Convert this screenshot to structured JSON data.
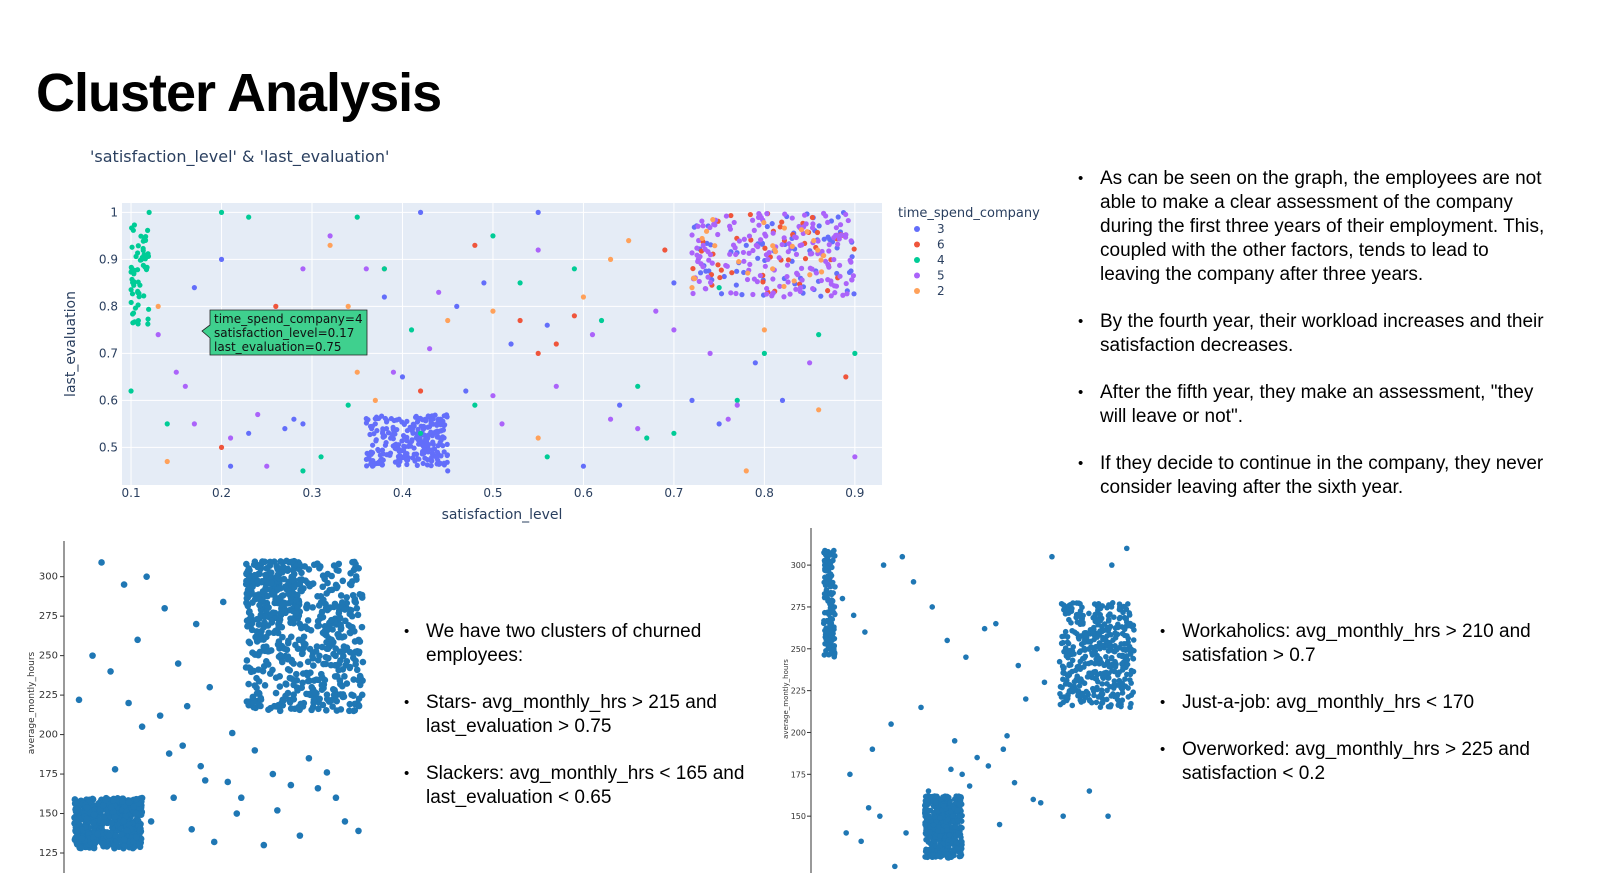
{
  "slide": {
    "title": "Cluster Analysis",
    "bullets_right": [
      "As can be seen on the graph, the employees are not able to make a clear assessment of the company during the first three years of their employment. This, coupled with the other factors, tends to lead to leaving the company after three years.",
      "By the fourth year, their workload increases and their satisfaction decreases.",
      "After the fifth year, they make an assessment, \"they will leave or not\".",
      "If they decide to continue in the company, they never consider leaving after the sixth year."
    ],
    "bullets_middle": [
      "We have two clusters of churned employees:",
      "Stars- avg_monthly_hrs > 215 and last_evaluation > 0.75",
      " Slackers: avg_monthly_hrs < 165 and last_evaluation < 0.65"
    ],
    "bullets_far_right": [
      "Workaholics: avg_monthly_hrs > 210 and satisfation > 0.7",
      "Just-a-job: avg_monthly_hrs < 170",
      " Overworked: avg_monthly_hrs > 225 and satisfaction < 0.2"
    ]
  },
  "colors": {
    "plot_bg": "#e5ecf6",
    "scatter_blue": "#1f77b4",
    "tooltip_bg": "#3fd08e"
  },
  "chart_data": [
    {
      "type": "scatter",
      "title": "'satisfaction_level' & 'last_evaluation'",
      "xlabel": "satisfaction_level",
      "ylabel": "last_evaluation",
      "xlim": [
        0.09,
        0.93
      ],
      "ylim": [
        0.42,
        1.02
      ],
      "x_ticks": [
        0.1,
        0.2,
        0.3,
        0.4,
        0.5,
        0.6,
        0.7,
        0.8,
        0.9
      ],
      "y_ticks": [
        0.5,
        0.6,
        0.7,
        0.8,
        0.9,
        1
      ],
      "grid": true,
      "legend_title": "time_spend_company",
      "legend_position": "right",
      "series": [
        {
          "name": "3",
          "color": "#636efa",
          "clusters": [
            {
              "x": [
                0.36,
                0.45
              ],
              "y": [
                0.46,
                0.57
              ],
              "n": 260
            },
            {
              "x": [
                0.72,
                0.9
              ],
              "y": [
                0.82,
                1.0
              ],
              "n": 70
            }
          ],
          "x": [
            0.42,
            0.55,
            0.2,
            0.17,
            0.33,
            0.38,
            0.46,
            0.49,
            0.52,
            0.64,
            0.7,
            0.75,
            0.78,
            0.82,
            0.29,
            0.45,
            0.23,
            0.21,
            0.34,
            0.4,
            0.47,
            0.56,
            0.6,
            0.72,
            0.79,
            0.88,
            0.27,
            0.28
          ],
          "y": [
            1.0,
            1.0,
            0.9,
            0.84,
            0.77,
            0.82,
            0.8,
            0.85,
            0.72,
            0.59,
            0.85,
            0.55,
            0.93,
            0.6,
            0.55,
            0.45,
            0.53,
            0.46,
            0.73,
            0.65,
            0.62,
            0.76,
            0.46,
            0.6,
            0.68,
            0.87,
            0.54,
            0.56
          ]
        },
        {
          "name": "6",
          "color": "#ef553b",
          "clusters": [
            {
              "x": [
                0.72,
                0.9
              ],
              "y": [
                0.83,
                1.0
              ],
              "n": 45
            }
          ],
          "x": [
            0.38,
            0.48,
            0.53,
            0.57,
            0.26,
            0.59,
            0.42,
            0.2,
            0.81,
            0.89,
            0.55,
            0.69
          ],
          "y": [
            0.88,
            0.93,
            0.77,
            0.72,
            0.8,
            0.78,
            0.62,
            0.5,
            0.96,
            0.65,
            0.7,
            0.92
          ]
        },
        {
          "name": "4",
          "color": "#00cc96",
          "clusters": [
            {
              "x": [
                0.1,
                0.12
              ],
              "y": [
                0.76,
                0.98
              ],
              "n": 60
            }
          ],
          "x": [
            0.12,
            0.2,
            0.23,
            0.35,
            0.41,
            0.5,
            0.53,
            0.59,
            0.62,
            0.66,
            0.75,
            0.8,
            0.86,
            0.9,
            0.31,
            0.34,
            0.42,
            0.48,
            0.14,
            0.29,
            0.56,
            0.67,
            0.7,
            0.77,
            0.1,
            0.38
          ],
          "y": [
            1.0,
            1.0,
            0.99,
            0.99,
            0.75,
            0.95,
            0.85,
            0.88,
            0.77,
            0.63,
            0.84,
            0.7,
            0.74,
            0.7,
            0.48,
            0.59,
            0.53,
            0.59,
            0.55,
            0.45,
            0.48,
            0.52,
            0.53,
            0.6,
            0.62,
            0.88
          ]
        },
        {
          "name": "5",
          "color": "#ab63fa",
          "clusters": [
            {
              "x": [
                0.72,
                0.9
              ],
              "y": [
                0.82,
                1.0
              ],
              "n": 170
            }
          ],
          "x": [
            0.15,
            0.24,
            0.32,
            0.36,
            0.39,
            0.44,
            0.5,
            0.55,
            0.61,
            0.66,
            0.7,
            0.74,
            0.77,
            0.85,
            0.13,
            0.17,
            0.21,
            0.25,
            0.29,
            0.43,
            0.51,
            0.57,
            0.63,
            0.68,
            0.76,
            0.84,
            0.9,
            0.16
          ],
          "y": [
            0.66,
            0.57,
            0.95,
            0.88,
            0.66,
            0.83,
            0.61,
            0.92,
            0.74,
            0.54,
            0.75,
            0.7,
            0.59,
            0.68,
            0.74,
            0.55,
            0.52,
            0.46,
            0.88,
            0.71,
            0.55,
            0.63,
            0.56,
            0.79,
            0.56,
            0.84,
            0.48,
            0.63
          ]
        },
        {
          "name": "2",
          "color": "#ffa15a",
          "clusters": [
            {
              "x": [
                0.72,
                0.88
              ],
              "y": [
                0.84,
                0.99
              ],
              "n": 25
            }
          ],
          "x": [
            0.14,
            0.32,
            0.35,
            0.34,
            0.37,
            0.45,
            0.5,
            0.6,
            0.63,
            0.65,
            0.72,
            0.8,
            0.86,
            0.13,
            0.78,
            0.55
          ],
          "y": [
            0.47,
            0.93,
            0.66,
            0.8,
            0.6,
            0.77,
            0.79,
            0.82,
            0.9,
            0.94,
            0.84,
            0.75,
            0.58,
            0.8,
            0.45,
            0.52
          ]
        }
      ],
      "tooltip": [
        "time_spend_company=4",
        "satisfaction_level=0.17",
        "last_evaluation=0.75"
      ]
    },
    {
      "type": "scatter",
      "xlabel": "",
      "ylabel": "average_montly_hours",
      "xlim": [
        0.35,
        1.02
      ],
      "ylim": [
        125,
        315
      ],
      "y_ticks": [
        125,
        150,
        175,
        200,
        225,
        250,
        275,
        300
      ],
      "series": [
        {
          "clusters": [
            {
              "x": [
                0.36,
                0.51
              ],
              "y": [
                128,
                160
              ],
              "n": 480
            },
            {
              "x": [
                0.74,
                1.0
              ],
              "y": [
                215,
                310
              ],
              "n": 520
            },
            {
              "x": [
                0.74,
                0.86
              ],
              "y": [
                270,
                310
              ],
              "n": 140
            }
          ],
          "x": [
            0.42,
            0.47,
            0.52,
            0.59,
            0.63,
            0.69,
            0.5,
            0.56,
            0.61,
            0.66,
            0.71,
            0.4,
            0.44,
            0.55,
            0.6,
            0.64,
            0.7,
            0.48,
            0.53,
            0.58,
            0.62,
            0.67,
            0.72,
            0.37,
            0.45,
            0.51,
            0.57,
            0.65,
            0.73,
            0.76,
            0.8,
            0.84,
            0.88,
            0.92,
            0.96,
            0.78,
            0.86,
            0.94,
            0.99,
            0.81,
            0.9
          ],
          "y": [
            309,
            295,
            300,
            245,
            270,
            284,
            260,
            280,
            218,
            230,
            201,
            250,
            240,
            212,
            193,
            180,
            170,
            220,
            145,
            160,
            140,
            132,
            150,
            222,
            178,
            205,
            188,
            171,
            160,
            190,
            175,
            168,
            185,
            176,
            145,
            130,
            136,
            160,
            139,
            152,
            166
          ]
        }
      ]
    },
    {
      "type": "scatter",
      "xlabel": "",
      "ylabel": "average_montly_hours",
      "xlim": [
        0.08,
        0.93
      ],
      "ylim": [
        125,
        315
      ],
      "y_ticks": [
        150,
        175,
        200,
        225,
        250,
        275,
        300
      ],
      "series": [
        {
          "clusters": [
            {
              "x": [
                0.09,
                0.12
              ],
              "y": [
                245,
                310
              ],
              "n": 140
            },
            {
              "x": [
                0.36,
                0.46
              ],
              "y": [
                125,
                162
              ],
              "n": 420
            },
            {
              "x": [
                0.72,
                0.92
              ],
              "y": [
                215,
                278
              ],
              "n": 420
            }
          ],
          "x": [
            0.14,
            0.17,
            0.2,
            0.25,
            0.3,
            0.33,
            0.38,
            0.42,
            0.47,
            0.52,
            0.55,
            0.61,
            0.66,
            0.7,
            0.86,
            0.9,
            0.16,
            0.22,
            0.27,
            0.35,
            0.44,
            0.5,
            0.58,
            0.63,
            0.68,
            0.24,
            0.31,
            0.4,
            0.48,
            0.56,
            0.65,
            0.19,
            0.28,
            0.37,
            0.46,
            0.53,
            0.6,
            0.67,
            0.73,
            0.8,
            0.85,
            0.15,
            0.21,
            0.43,
            0.57
          ],
          "y": [
            280,
            270,
            260,
            300,
            305,
            290,
            275,
            255,
            245,
            262,
            265,
            240,
            250,
            305,
            300,
            310,
            175,
            190,
            205,
            215,
            195,
            185,
            198,
            220,
            230,
            150,
            140,
            132,
            168,
            145,
            160,
            135,
            120,
            165,
            175,
            180,
            170,
            158,
            150,
            165,
            150,
            140,
            155,
            178,
            190
          ]
        }
      ]
    }
  ]
}
